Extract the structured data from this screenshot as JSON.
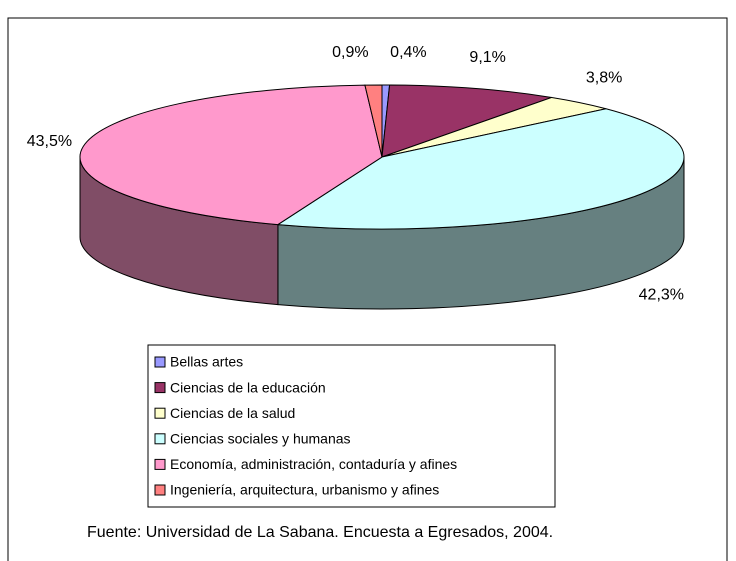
{
  "chart_data": {
    "type": "pie3d",
    "categories": [
      "Bellas artes",
      "Ciencias de la educación",
      "Ciencias de la salud",
      "Ciencias sociales y humanas",
      "Economía, administración, contaduría y afines",
      "Ingeniería, arquitectura, urbanismo y afines"
    ],
    "values": [
      0.4,
      9.1,
      3.8,
      42.3,
      43.5,
      0.9
    ],
    "value_labels": [
      "0,4%",
      "9,1%",
      "3,8%",
      "42,3%",
      "43,5%",
      "0,9%"
    ],
    "colors": [
      "#9999ff",
      "#993366",
      "#ffffcc",
      "#ccffff",
      "#ff99cc",
      "#ff8080"
    ],
    "source": "Fuente: Universidad de La Sabana. Encuesta a Egresados, 2004."
  }
}
